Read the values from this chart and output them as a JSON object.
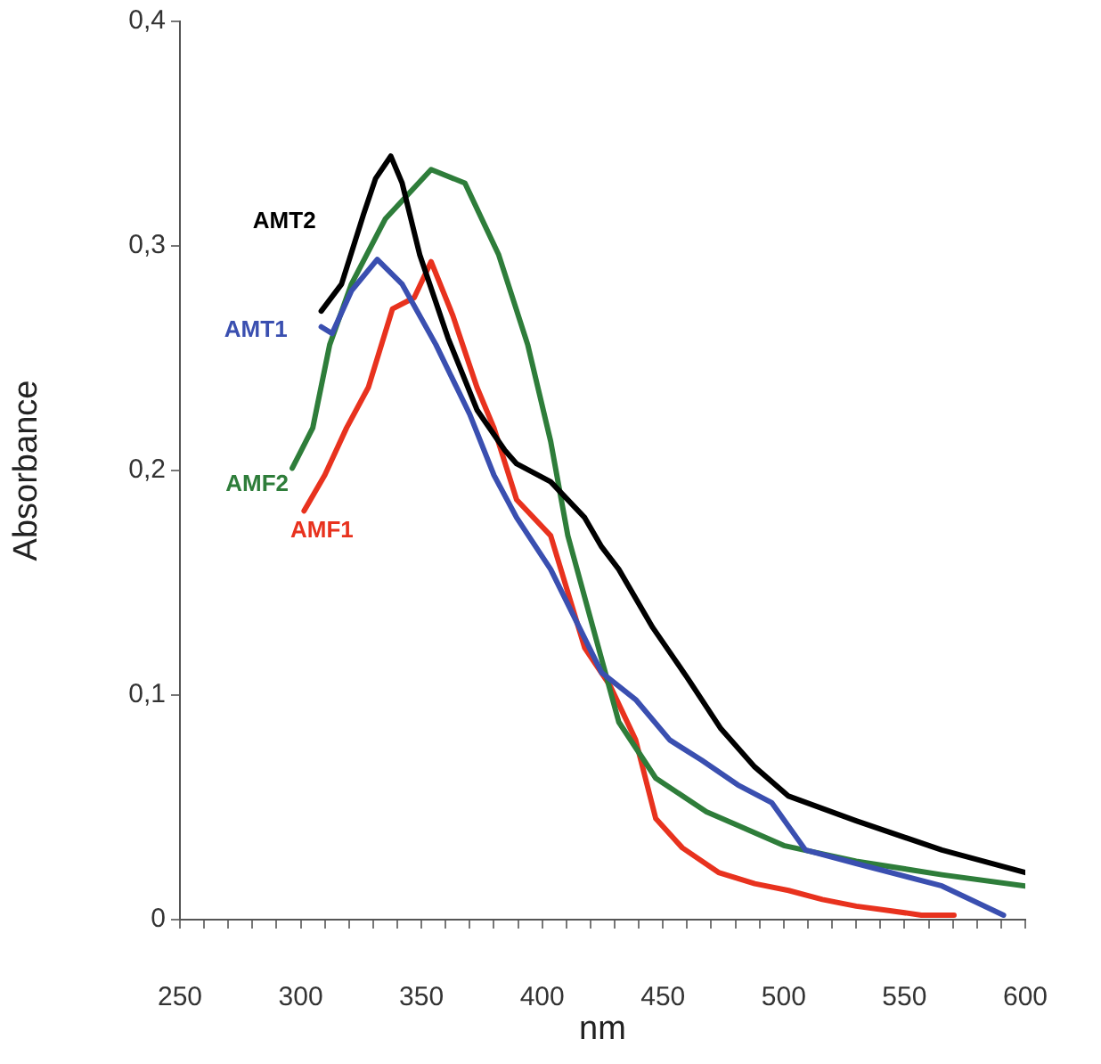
{
  "chart_data": {
    "type": "line",
    "xlabel": "nm",
    "ylabel": "Absorbance",
    "xlim": [
      250,
      600
    ],
    "ylim": [
      0,
      0.4
    ],
    "xticks": [
      250,
      {
        "value": 260,
        "label": null
      },
      {
        "value": 270,
        "label": null
      },
      {
        "value": 280,
        "label": null
      },
      {
        "value": 290,
        "label": null
      },
      300,
      {
        "value": 310,
        "label": null
      },
      {
        "value": 320,
        "label": null
      },
      {
        "value": 330,
        "label": null
      },
      {
        "value": 340,
        "label": null
      },
      350,
      {
        "value": 360,
        "label": null
      },
      {
        "value": 370,
        "label": null
      },
      {
        "value": 380,
        "label": null
      },
      {
        "value": 390,
        "label": null
      },
      400,
      {
        "value": 410,
        "label": null
      },
      {
        "value": 420,
        "label": null
      },
      {
        "value": 430,
        "label": null
      },
      {
        "value": 440,
        "label": null
      },
      450,
      {
        "value": 460,
        "label": null
      },
      {
        "value": 470,
        "label": null
      },
      {
        "value": 480,
        "label": null
      },
      {
        "value": 490,
        "label": null
      },
      500,
      {
        "value": 510,
        "label": null
      },
      {
        "value": 520,
        "label": null
      },
      {
        "value": 530,
        "label": null
      },
      {
        "value": 540,
        "label": null
      },
      550,
      {
        "value": 560,
        "label": null
      },
      {
        "value": 570,
        "label": null
      },
      {
        "value": 580,
        "label": null
      },
      {
        "value": 590,
        "label": null
      },
      600
    ],
    "yticks": [
      0,
      {
        "value": 0.1,
        "label": "0,1"
      },
      {
        "value": 0.2,
        "label": "0,2"
      },
      {
        "value": 0.3,
        "label": "0,3"
      },
      {
        "value": 0.4,
        "label": "0,4"
      }
    ],
    "grid": false,
    "legend": false,
    "marker": "none",
    "line_style": "solid",
    "series": [
      {
        "name": "AMT2",
        "color": "#000000",
        "x": [
          308.5,
          316.9,
          326,
          331,
          337.3,
          342,
          349.3,
          361,
          373,
          384.5,
          389.4,
          403.5,
          417.6,
          424.6,
          431.7,
          445.8,
          459.9,
          474,
          488,
          502,
          530,
          565.5,
          600
        ],
        "values": [
          0.271,
          0.283,
          0.314,
          0.33,
          0.34,
          0.328,
          0.296,
          0.259,
          0.227,
          0.209,
          0.203,
          0.195,
          0.179,
          0.166,
          0.156,
          0.13,
          0.108,
          0.085,
          0.068,
          0.055,
          0.044,
          0.031,
          0.021
        ]
      },
      {
        "name": "AMT1",
        "color": "#3a4fb0",
        "x": [
          308.5,
          313,
          321,
          331.7,
          342,
          356,
          370,
          380,
          389.4,
          403.5,
          424.6,
          438.7,
          452.8,
          466,
          481,
          495.1,
          509,
          530,
          565.5,
          591
        ],
        "values": [
          0.264,
          0.261,
          0.28,
          0.294,
          0.283,
          0.256,
          0.225,
          0.198,
          0.179,
          0.156,
          0.11,
          0.098,
          0.08,
          0.071,
          0.06,
          0.052,
          0.031,
          0.025,
          0.015,
          0.002
        ]
      },
      {
        "name": "AMF2",
        "color": "#2e7d3a",
        "x": [
          296.5,
          305,
          312,
          321,
          335,
          354,
          368,
          382,
          394,
          403.5,
          410.6,
          424.6,
          431.7,
          447,
          468,
          481,
          500,
          530,
          565.5,
          600
        ],
        "values": [
          0.201,
          0.219,
          0.256,
          0.283,
          0.312,
          0.334,
          0.328,
          0.296,
          0.256,
          0.213,
          0.171,
          0.116,
          0.088,
          0.063,
          0.048,
          0.042,
          0.033,
          0.026,
          0.02,
          0.015
        ]
      },
      {
        "name": "AMF1",
        "color": "#e8321e",
        "x": [
          301.4,
          310,
          319,
          328,
          338,
          347,
          354,
          363,
          373,
          380,
          389.4,
          403.5,
          417.6,
          428.2,
          438.7,
          447,
          458,
          473,
          488,
          502,
          516,
          530,
          544,
          557,
          570.5
        ],
        "values": [
          0.182,
          0.198,
          0.219,
          0.237,
          0.272,
          0.277,
          0.293,
          0.269,
          0.237,
          0.219,
          0.187,
          0.171,
          0.121,
          0.104,
          0.08,
          0.045,
          0.032,
          0.021,
          0.016,
          0.013,
          0.009,
          0.006,
          0.004,
          0.002,
          0.002
        ]
      }
    ]
  }
}
